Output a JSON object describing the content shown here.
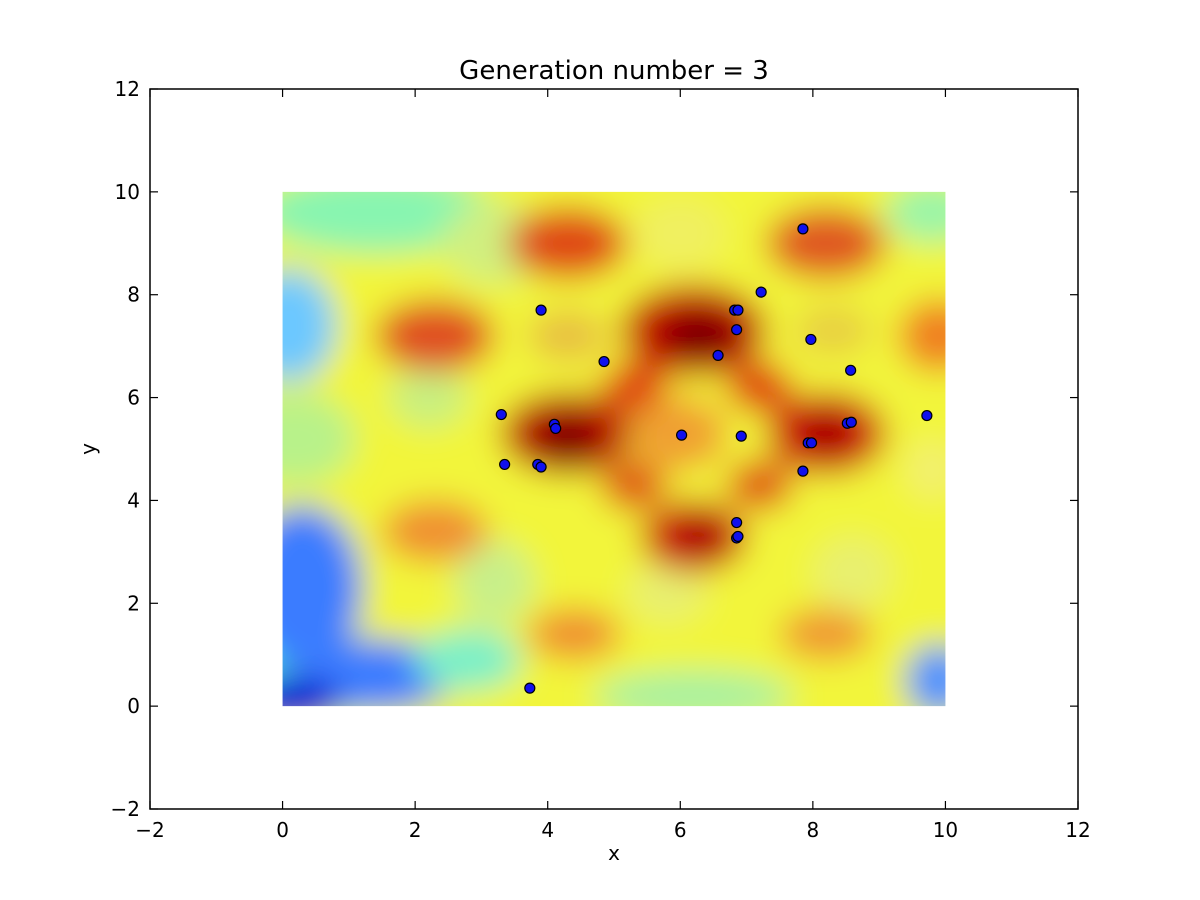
{
  "chart_data": {
    "type": "scatter",
    "title": "Generation number = 3",
    "xlabel": "x",
    "ylabel": "y",
    "xlim": [
      -2,
      12
    ],
    "ylim": [
      -2,
      12
    ],
    "xticks": [
      "−2",
      "0",
      "2",
      "4",
      "6",
      "8",
      "10",
      "12"
    ],
    "yticks": [
      "−2",
      "0",
      "2",
      "4",
      "6",
      "8",
      "10",
      "12"
    ],
    "grid": false,
    "background": {
      "type": "heatmap",
      "colormap": "jet",
      "extent": [
        0,
        10,
        0,
        10
      ]
    },
    "point_color": "#1010ee",
    "points": [
      {
        "x": 7.85,
        "y": 9.28
      },
      {
        "x": 7.22,
        "y": 8.05
      },
      {
        "x": 3.9,
        "y": 7.7
      },
      {
        "x": 6.82,
        "y": 7.7
      },
      {
        "x": 6.87,
        "y": 7.7
      },
      {
        "x": 6.85,
        "y": 7.32
      },
      {
        "x": 7.97,
        "y": 7.13
      },
      {
        "x": 4.85,
        "y": 6.7
      },
      {
        "x": 6.57,
        "y": 6.82
      },
      {
        "x": 8.57,
        "y": 6.53
      },
      {
        "x": 3.3,
        "y": 5.67
      },
      {
        "x": 4.1,
        "y": 5.48
      },
      {
        "x": 4.12,
        "y": 5.4
      },
      {
        "x": 6.02,
        "y": 5.27
      },
      {
        "x": 6.92,
        "y": 5.25
      },
      {
        "x": 7.93,
        "y": 5.12
      },
      {
        "x": 7.98,
        "y": 5.12
      },
      {
        "x": 8.52,
        "y": 5.5
      },
      {
        "x": 8.58,
        "y": 5.52
      },
      {
        "x": 9.72,
        "y": 5.65
      },
      {
        "x": 3.35,
        "y": 4.7
      },
      {
        "x": 3.85,
        "y": 4.7
      },
      {
        "x": 3.9,
        "y": 4.65
      },
      {
        "x": 7.85,
        "y": 4.57
      },
      {
        "x": 6.85,
        "y": 3.57
      },
      {
        "x": 6.85,
        "y": 3.27
      },
      {
        "x": 6.87,
        "y": 3.3
      },
      {
        "x": 3.73,
        "y": 0.35
      }
    ]
  }
}
